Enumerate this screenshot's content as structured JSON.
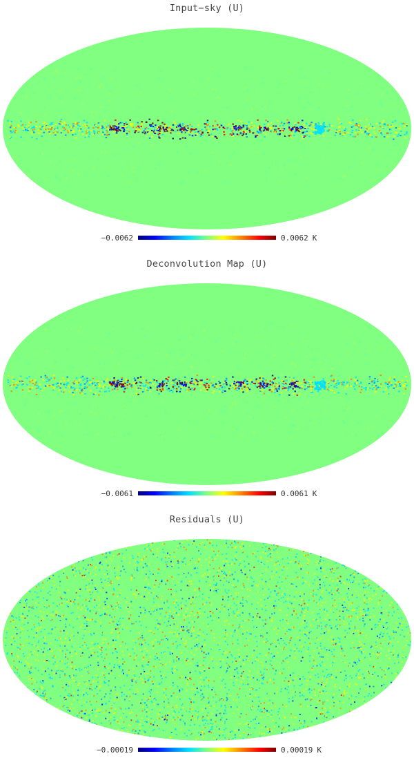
{
  "panels": [
    {
      "title": "Input−sky (U)",
      "map": "galactic-plane",
      "colorbar": {
        "min": "−0.0062",
        "max": "0.0062",
        "unit": "K"
      }
    },
    {
      "title": "Deconvolution Map (U)",
      "map": "galactic-plane",
      "colorbar": {
        "min": "−0.0061",
        "max": "0.0061",
        "unit": "K"
      }
    },
    {
      "title": "Residuals (U)",
      "map": "noise",
      "colorbar": {
        "min": "−0.00019",
        "max": "0.00019",
        "unit": "K"
      }
    }
  ],
  "colors": {
    "background_map": "#80ff80",
    "colormap": [
      "#00007f",
      "#0000ff",
      "#0080ff",
      "#00e0ff",
      "#80ff80",
      "#ffff00",
      "#ff8000",
      "#ff0000",
      "#7f0000"
    ]
  }
}
